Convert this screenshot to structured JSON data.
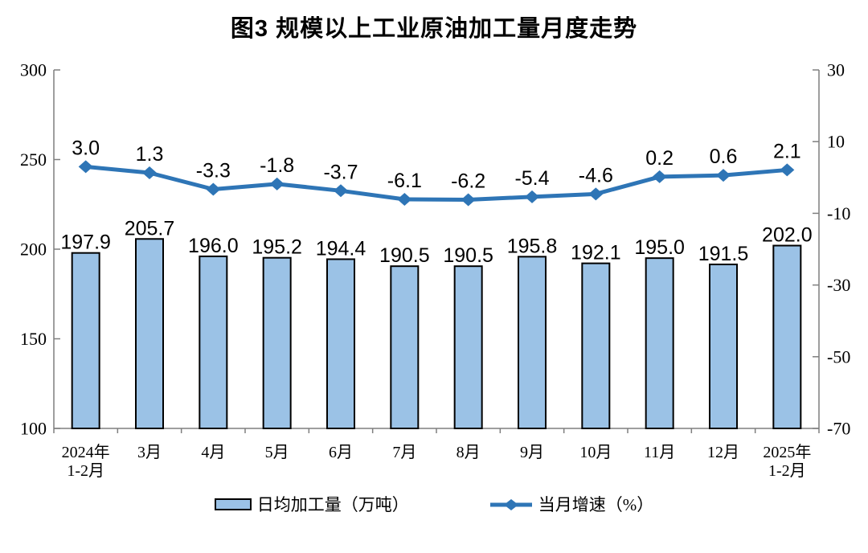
{
  "chart_data": {
    "type": "combo-bar-line",
    "title": "图3 规模以上工业原油加工量月度走势",
    "categories": [
      "2024年\n1-2月",
      "3月",
      "4月",
      "5月",
      "6月",
      "7月",
      "8月",
      "9月",
      "10月",
      "11月",
      "12月",
      "2025年\n1-2月"
    ],
    "series": [
      {
        "name": "日均加工量（万吨）",
        "type": "bar",
        "axis": "left",
        "color": "#9BC2E6",
        "border": "#000000",
        "values": [
          197.9,
          205.7,
          196.0,
          195.2,
          194.4,
          190.5,
          190.5,
          195.8,
          192.1,
          195.0,
          191.5,
          202.0
        ]
      },
      {
        "name": "当月增速（%）",
        "type": "line",
        "axis": "right",
        "color": "#2E75B6",
        "marker": "diamond",
        "values": [
          3.0,
          1.3,
          -3.3,
          -1.8,
          -3.7,
          -6.1,
          -6.2,
          -5.4,
          -4.6,
          0.2,
          0.6,
          2.1
        ]
      }
    ],
    "left_axis": {
      "min": 100,
      "max": 300,
      "ticks": [
        100,
        150,
        200,
        250,
        300
      ]
    },
    "right_axis": {
      "min": -70,
      "max": 30,
      "ticks": [
        -70,
        -50,
        -30,
        -10,
        10,
        30
      ]
    },
    "legend_position": "bottom",
    "grid": false,
    "axis_color": "#7F7F7F",
    "label_color": "#000000"
  }
}
